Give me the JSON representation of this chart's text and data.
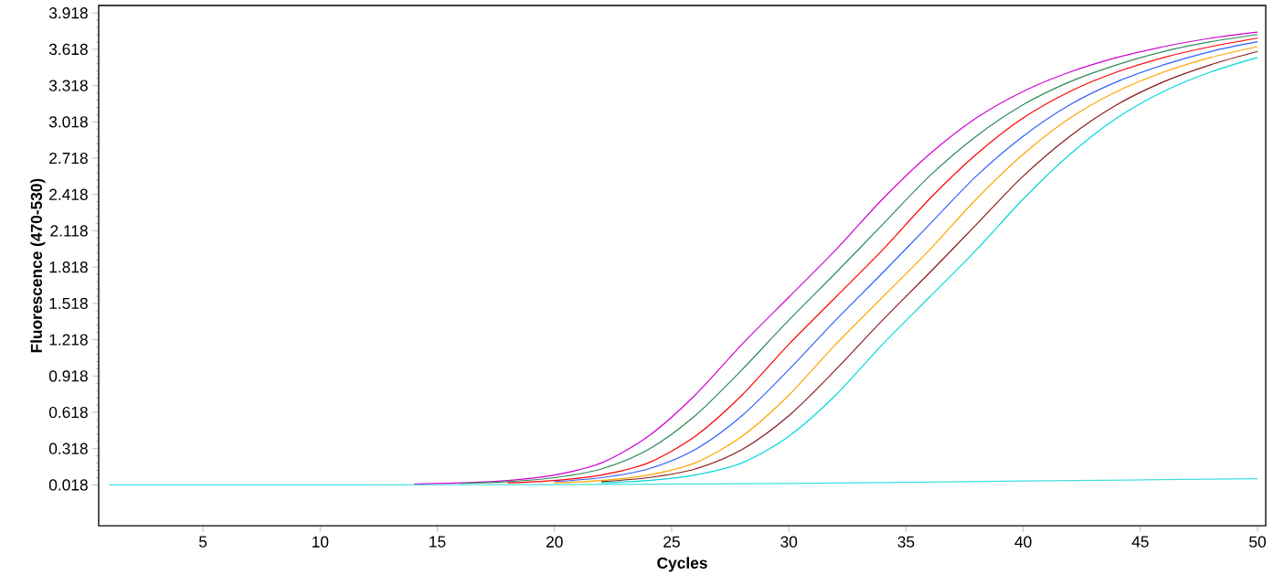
{
  "chart_data": {
    "type": "line",
    "xlabel": "Cycles",
    "ylabel": "Fluorescence (470-530)",
    "x": [
      14,
      16,
      18,
      20,
      22,
      24,
      26,
      28,
      30,
      32,
      34,
      36,
      38,
      40,
      42,
      44,
      46,
      48,
      50
    ],
    "series": [
      {
        "color": "#d000d0",
        "values": [
          0.025,
          0.035,
          0.055,
          0.1,
          0.2,
          0.42,
          0.76,
          1.18,
          1.57,
          1.96,
          2.38,
          2.75,
          3.05,
          3.27,
          3.43,
          3.55,
          3.64,
          3.71,
          3.76
        ]
      },
      {
        "color": "#2e8b57",
        "values": [
          null,
          0.03,
          0.045,
          0.078,
          0.15,
          0.31,
          0.59,
          0.97,
          1.38,
          1.77,
          2.17,
          2.57,
          2.9,
          3.16,
          3.35,
          3.49,
          3.6,
          3.68,
          3.74
        ]
      },
      {
        "color": "#ff0000",
        "values": [
          null,
          null,
          0.035,
          0.055,
          0.1,
          0.2,
          0.42,
          0.76,
          1.18,
          1.57,
          1.96,
          2.38,
          2.75,
          3.05,
          3.27,
          3.43,
          3.55,
          3.64,
          3.71
        ]
      },
      {
        "color": "#3060ff",
        "values": [
          null,
          null,
          null,
          0.045,
          0.078,
          0.15,
          0.31,
          0.59,
          0.97,
          1.38,
          1.77,
          2.17,
          2.57,
          2.9,
          3.16,
          3.35,
          3.49,
          3.6,
          3.68
        ]
      },
      {
        "color": "#ffa500",
        "values": [
          null,
          null,
          null,
          0.035,
          0.055,
          0.1,
          0.2,
          0.42,
          0.76,
          1.18,
          1.57,
          1.96,
          2.38,
          2.75,
          3.05,
          3.27,
          3.43,
          3.55,
          3.64
        ]
      },
      {
        "color": "#8b1a1a",
        "values": [
          null,
          null,
          null,
          null,
          0.045,
          0.078,
          0.15,
          0.31,
          0.59,
          0.97,
          1.38,
          1.77,
          2.17,
          2.57,
          2.9,
          3.16,
          3.35,
          3.49,
          3.6
        ]
      },
      {
        "color": "#00d8d8",
        "values": [
          null,
          null,
          null,
          null,
          0.035,
          0.055,
          0.1,
          0.2,
          0.42,
          0.76,
          1.18,
          1.57,
          1.96,
          2.38,
          2.75,
          3.05,
          3.27,
          3.43,
          3.55
        ]
      },
      {
        "color": "#40e0e0",
        "x": [
          1,
          20,
          30,
          40,
          50
        ],
        "values": [
          0.018,
          0.02,
          0.03,
          0.05,
          0.07
        ]
      }
    ],
    "xlim": [
      0.55,
      50.35
    ],
    "xticks": [
      5,
      10,
      15,
      20,
      25,
      30,
      35,
      40,
      45,
      50
    ],
    "ylim": [
      -0.32,
      3.98
    ],
    "yticks": [
      0.018,
      0.318,
      0.618,
      0.918,
      1.218,
      1.518,
      1.818,
      2.118,
      2.418,
      2.718,
      3.018,
      3.318,
      3.618,
      3.918
    ],
    "marker": "none",
    "line_style": "solid"
  }
}
